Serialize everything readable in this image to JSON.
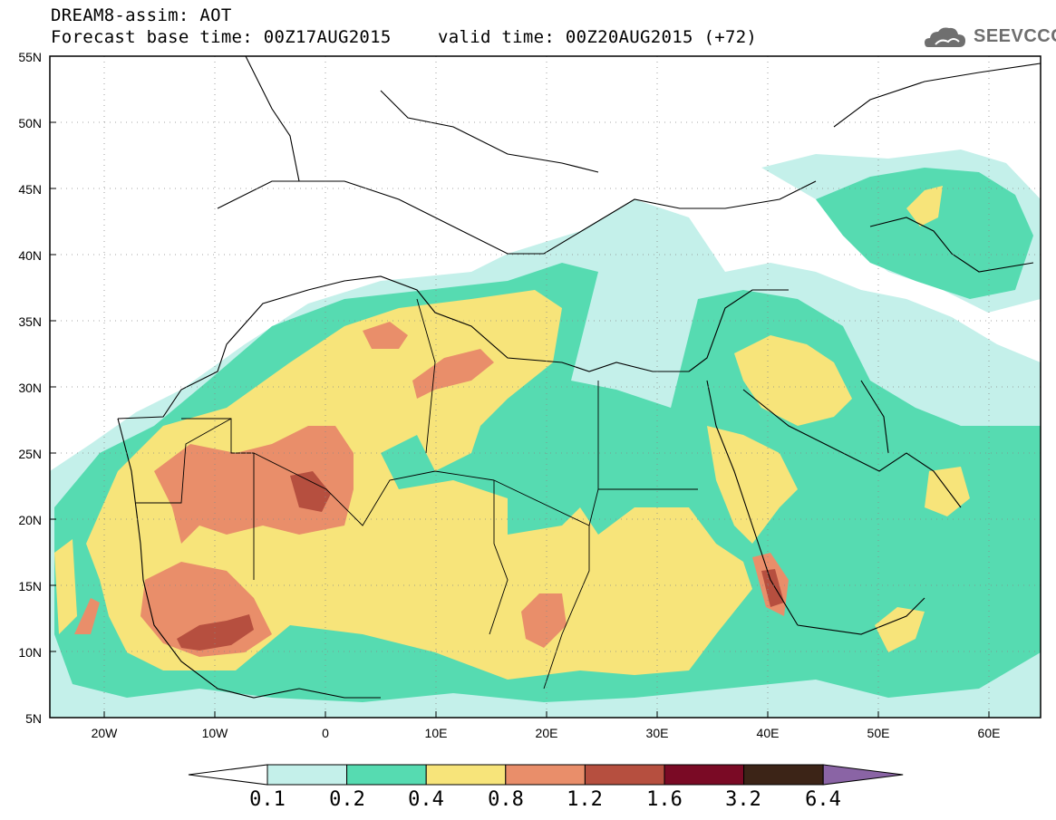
{
  "header": {
    "line1": "DREAM8-assim: AOT",
    "line2": "Forecast base time: 00Z17AUG2015",
    "line3": "valid time: 00Z20AUG2015 (+72)",
    "logo_text": "SEEVCCC"
  },
  "axes": {
    "lat_labels": [
      "55N",
      "50N",
      "45N",
      "40N",
      "35N",
      "30N",
      "25N",
      "20N",
      "15N",
      "10N",
      "5N"
    ],
    "lon_labels": [
      "20W",
      "10W",
      "0",
      "10E",
      "20E",
      "30E",
      "40E",
      "50E",
      "60E"
    ]
  },
  "colorbar": {
    "labels": [
      "0.1",
      "0.2",
      "0.4",
      "0.8",
      "1.2",
      "1.6",
      "3.2",
      "6.4"
    ],
    "colors": [
      "#ffffff",
      "#c4f0ea",
      "#56dbb1",
      "#f7e47a",
      "#e98e6a",
      "#b64f3f",
      "#7a0a25",
      "#3c2417",
      "#8a64a5"
    ]
  }
}
